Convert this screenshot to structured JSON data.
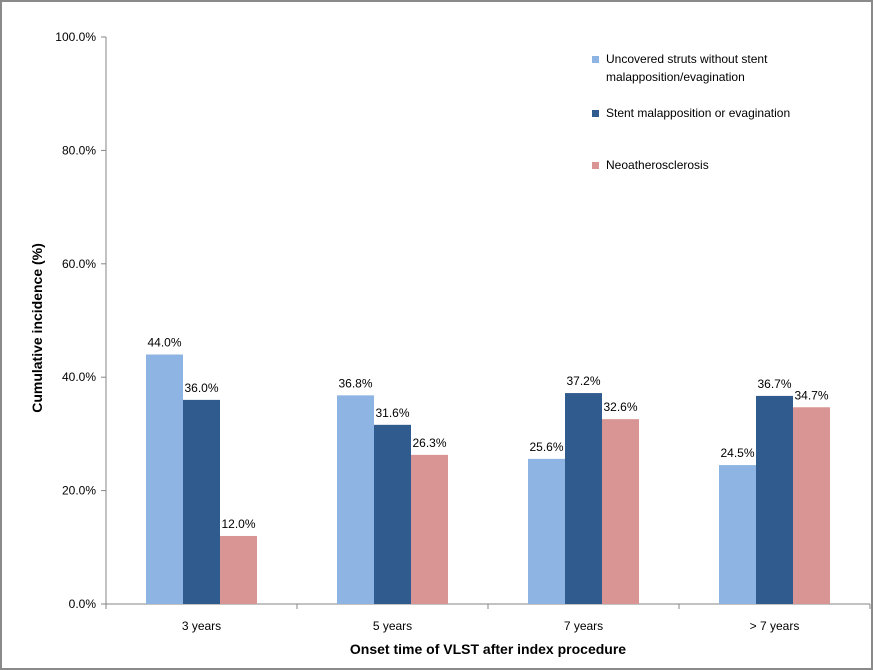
{
  "chart_data": {
    "type": "bar",
    "categories": [
      "3 years",
      "5 years",
      "7 years",
      "> 7 years"
    ],
    "series": [
      {
        "name": "Uncovered struts without stent malapposition/evagination",
        "legend_lines": [
          "Uncovered struts without stent",
          "malapposition/evagination"
        ],
        "color": "#8db4e2",
        "values": [
          44.0,
          36.8,
          25.6,
          24.5
        ],
        "labels": [
          "44.0%",
          "36.8%",
          "25.6%",
          "24.5%"
        ]
      },
      {
        "name": "Stent malapposition or evagination",
        "legend_lines": [
          "Stent malapposition or evagination"
        ],
        "color": "#2f5b8f",
        "values": [
          36.0,
          31.6,
          37.2,
          36.7
        ],
        "labels": [
          "36.0%",
          "31.6%",
          "37.2%",
          "36.7%"
        ]
      },
      {
        "name": "Neoatherosclerosis",
        "legend_lines": [
          "Neoatherosclerosis"
        ],
        "color": "#d99594",
        "values": [
          12.0,
          26.3,
          32.6,
          34.7
        ],
        "labels": [
          "12.0%",
          "26.3%",
          "32.6%",
          "34.7%"
        ]
      }
    ],
    "ylim": [
      0,
      100
    ],
    "yticks": [
      "0.0%",
      "20.0%",
      "40.0%",
      "60.0%",
      "80.0%",
      "100.0%"
    ],
    "xlabel": "Onset time of VLST after index procedure",
    "ylabel": "Cumulative incidence (%)",
    "grid": false,
    "legend_position": "top-right"
  }
}
